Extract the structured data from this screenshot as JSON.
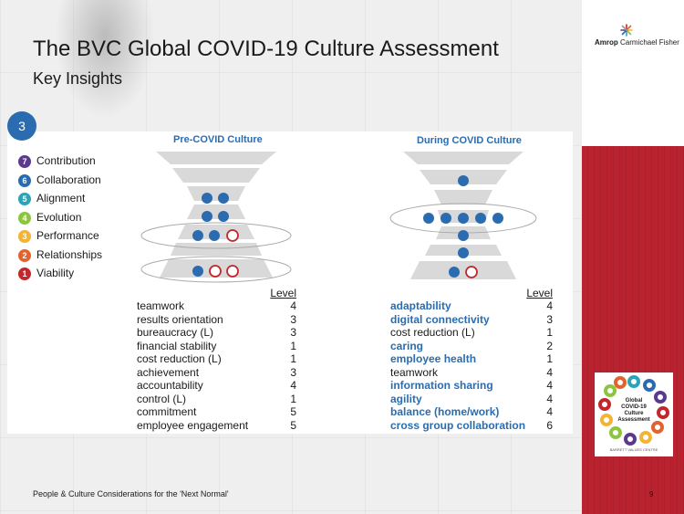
{
  "header": {
    "title": "The BVC Global COVID-19 Culture Assessment",
    "subtitle": "Key Insights"
  },
  "logo": {
    "brand": "Amrop",
    "name": "Carmichael Fisher"
  },
  "step": {
    "number": "3",
    "color": "#2b6cb0"
  },
  "legend": [
    {
      "num": "7",
      "label": "Contribution",
      "color": "#5b3a8e"
    },
    {
      "num": "6",
      "label": "Collaboration",
      "color": "#2b6cb0"
    },
    {
      "num": "5",
      "label": "Alignment",
      "color": "#2aa5b8"
    },
    {
      "num": "4",
      "label": "Evolution",
      "color": "#8cc63f"
    },
    {
      "num": "3",
      "label": "Performance",
      "color": "#f5b335"
    },
    {
      "num": "2",
      "label": "Relationships",
      "color": "#e2632d"
    },
    {
      "num": "1",
      "label": "Viability",
      "color": "#c1272d"
    }
  ],
  "pre_covid": {
    "title": "Pre-COVID Culture",
    "level_header": "Level",
    "rows": [
      {
        "label": "teamwork",
        "level": "4",
        "highlight": false
      },
      {
        "label": "results orientation",
        "level": "3",
        "highlight": false
      },
      {
        "label": "bureaucracy (L)",
        "level": "3",
        "highlight": false
      },
      {
        "label": "financial stability",
        "level": "1",
        "highlight": false
      },
      {
        "label": "cost reduction (L)",
        "level": "1",
        "highlight": false
      },
      {
        "label": "achievement",
        "level": "3",
        "highlight": false
      },
      {
        "label": "accountability",
        "level": "4",
        "highlight": false
      },
      {
        "label": "control (L)",
        "level": "1",
        "highlight": false
      },
      {
        "label": "commitment",
        "level": "5",
        "highlight": false
      },
      {
        "label": "employee engagement",
        "level": "5",
        "highlight": false
      }
    ]
  },
  "during_covid": {
    "title": "During COVID Culture",
    "level_header": "Level",
    "rows": [
      {
        "label": "adaptability",
        "level": "4",
        "highlight": true
      },
      {
        "label": "digital connectivity",
        "level": "3",
        "highlight": true
      },
      {
        "label": "cost reduction (L)",
        "level": "1",
        "highlight": false
      },
      {
        "label": "caring",
        "level": "2",
        "highlight": true
      },
      {
        "label": "employee health",
        "level": "1",
        "highlight": true
      },
      {
        "label": "teamwork",
        "level": "4",
        "highlight": false
      },
      {
        "label": "information sharing",
        "level": "4",
        "highlight": true
      },
      {
        "label": "agility",
        "level": "4",
        "highlight": true
      },
      {
        "label": "balance (home/work)",
        "level": "4",
        "highlight": true
      },
      {
        "label": "cross group collaboration",
        "level": "6",
        "highlight": true
      }
    ]
  },
  "footer": {
    "text": "People & Culture Considerations for the 'Next Normal'",
    "page": "9"
  },
  "badge": {
    "line1": "Global",
    "line2": "COVID-19",
    "line3": "Culture",
    "line4": "Assessment",
    "org": "BARRETT VALUES CENTRE"
  },
  "colors": {
    "accent": "#2b6cb0",
    "red": "#b8232f",
    "dot": "#2b6cb0",
    "open_dot": "#c1272d"
  }
}
